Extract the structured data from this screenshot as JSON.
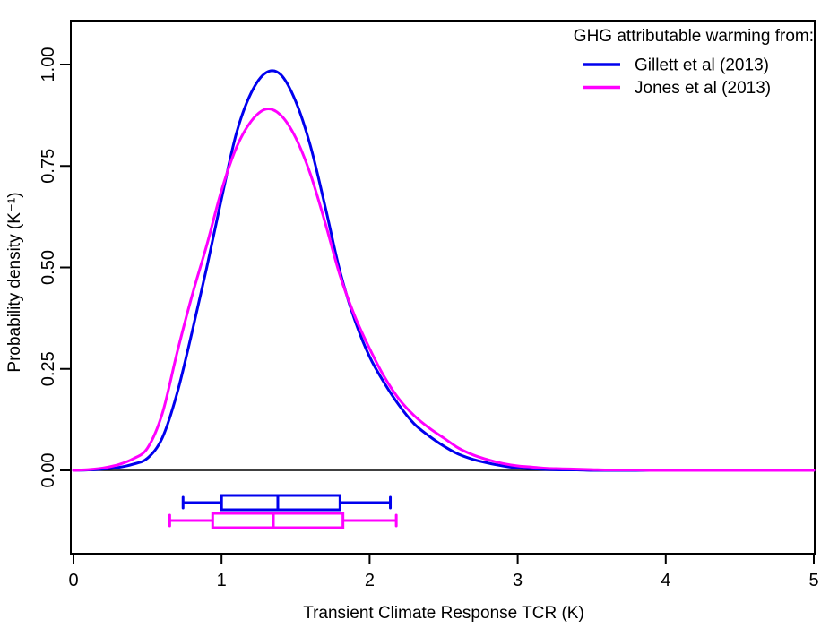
{
  "figure": {
    "background": "#ffffff",
    "legend": {
      "title": "GHG attributable warming from:",
      "position": "top-right",
      "entries": [
        {
          "label": "Gillett et al (2013)",
          "color": "#0000ee"
        },
        {
          "label": "Jones et al (2013)",
          "color": "#ff00ff"
        }
      ]
    },
    "x_axis": {
      "label": "Transient Climate Response TCR (K)",
      "tick_labels": [
        "0",
        "1",
        "2",
        "3",
        "4",
        "5"
      ],
      "tick_values": [
        0,
        1,
        2,
        3,
        4,
        5
      ]
    },
    "y_axis": {
      "label": "Probability density (K⁻¹)",
      "tick_labels": [
        "0.00",
        "0.25",
        "0.50",
        "0.75",
        "1.00"
      ],
      "tick_values": [
        0,
        0.25,
        0.5,
        0.75,
        1
      ]
    }
  },
  "chart_data": {
    "type": "line",
    "title": "",
    "xlabel": "Transient Climate Response TCR (K)",
    "ylabel": "Probability density (K⁻¹)",
    "xlim": [
      0,
      5
    ],
    "ylim": [
      0,
      1.05
    ],
    "grid": false,
    "legend_position": "top-right",
    "zero_line": true,
    "x": [
      0,
      0.1,
      0.2,
      0.3,
      0.4,
      0.5,
      0.6,
      0.7,
      0.8,
      0.9,
      1.0,
      1.1,
      1.2,
      1.3,
      1.4,
      1.5,
      1.6,
      1.7,
      1.8,
      1.9,
      2.0,
      2.1,
      2.2,
      2.3,
      2.4,
      2.5,
      2.6,
      2.7,
      2.8,
      2.9,
      3.0,
      3.1,
      3.2,
      3.3,
      3.4,
      3.5,
      3.6,
      3.7,
      3.8,
      3.9,
      4.0,
      4.1,
      4.2,
      4.3,
      4.4,
      4.5,
      4.6,
      4.7,
      4.8,
      4.9,
      5.0
    ],
    "series": [
      {
        "name": "Gillett et al (2013)",
        "color": "#0000ee",
        "peak": {
          "x": 1.35,
          "density": 0.985
        },
        "values": [
          0,
          0.001,
          0.003,
          0.007,
          0.015,
          0.03,
          0.08,
          0.19,
          0.34,
          0.5,
          0.67,
          0.83,
          0.93,
          0.98,
          0.975,
          0.91,
          0.8,
          0.65,
          0.49,
          0.37,
          0.28,
          0.215,
          0.16,
          0.115,
          0.085,
          0.06,
          0.04,
          0.027,
          0.018,
          0.011,
          0.006,
          0.004,
          0.002,
          0.001,
          0.001,
          0,
          0,
          0,
          0,
          0,
          0,
          0,
          0,
          0,
          0,
          0,
          0,
          0,
          0,
          0,
          0
        ]
      },
      {
        "name": "Jones et al (2013)",
        "color": "#ff00ff",
        "peak": {
          "x": 1.31,
          "density": 0.89
        },
        "values": [
          0,
          0.002,
          0.006,
          0.014,
          0.028,
          0.055,
          0.14,
          0.29,
          0.43,
          0.555,
          0.69,
          0.795,
          0.86,
          0.89,
          0.875,
          0.82,
          0.73,
          0.61,
          0.48,
          0.38,
          0.3,
          0.23,
          0.175,
          0.135,
          0.105,
          0.08,
          0.055,
          0.038,
          0.026,
          0.017,
          0.011,
          0.008,
          0.005,
          0.004,
          0.003,
          0.002,
          0.001,
          0.001,
          0.001,
          0,
          0,
          0,
          0,
          0,
          0,
          0,
          0,
          0,
          0,
          0,
          0
        ]
      }
    ],
    "boxplots": [
      {
        "name": "Gillett et al (2013)",
        "color": "#0000ee",
        "whisker_low": 0.74,
        "q1": 1.0,
        "median": 1.38,
        "q3": 1.8,
        "whisker_high": 2.14
      },
      {
        "name": "Jones et al (2013)",
        "color": "#ff00ff",
        "whisker_low": 0.65,
        "q1": 0.94,
        "median": 1.35,
        "q3": 1.82,
        "whisker_high": 2.18
      }
    ]
  }
}
